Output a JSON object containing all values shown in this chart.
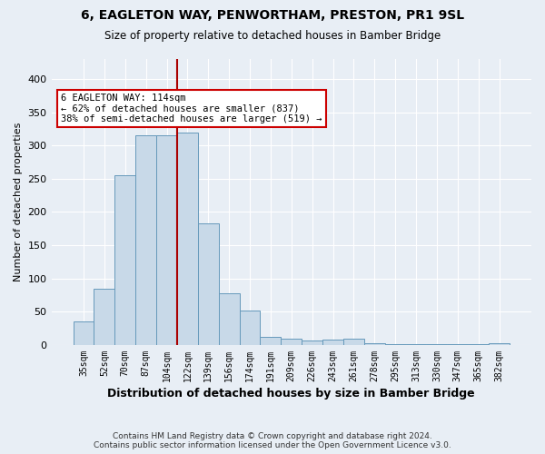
{
  "title": "6, EAGLETON WAY, PENWORTHAM, PRESTON, PR1 9SL",
  "subtitle": "Size of property relative to detached houses in Bamber Bridge",
  "xlabel": "Distribution of detached houses by size in Bamber Bridge",
  "ylabel": "Number of detached properties",
  "categories": [
    "35sqm",
    "52sqm",
    "70sqm",
    "87sqm",
    "104sqm",
    "122sqm",
    "139sqm",
    "156sqm",
    "174sqm",
    "191sqm",
    "209sqm",
    "226sqm",
    "243sqm",
    "261sqm",
    "278sqm",
    "295sqm",
    "313sqm",
    "330sqm",
    "347sqm",
    "365sqm",
    "382sqm"
  ],
  "values": [
    35,
    85,
    255,
    315,
    315,
    320,
    183,
    78,
    52,
    12,
    10,
    7,
    8,
    10,
    2,
    1,
    1,
    1,
    1,
    1,
    2
  ],
  "bar_color": "#c8d9e8",
  "bar_edge_color": "#6699bb",
  "vline_x_idx": 5,
  "vline_color": "#aa0000",
  "annotation_text": "6 EAGLETON WAY: 114sqm\n← 62% of detached houses are smaller (837)\n38% of semi-detached houses are larger (519) →",
  "annotation_box_color": "#ffffff",
  "annotation_box_edge_color": "#cc0000",
  "footer_line1": "Contains HM Land Registry data © Crown copyright and database right 2024.",
  "footer_line2": "Contains public sector information licensed under the Open Government Licence v3.0.",
  "bg_color": "#e8eef5",
  "plot_bg_color": "#e8eef5",
  "grid_color": "#ffffff",
  "ylim": [
    0,
    430
  ],
  "yticks": [
    0,
    50,
    100,
    150,
    200,
    250,
    300,
    350,
    400
  ]
}
